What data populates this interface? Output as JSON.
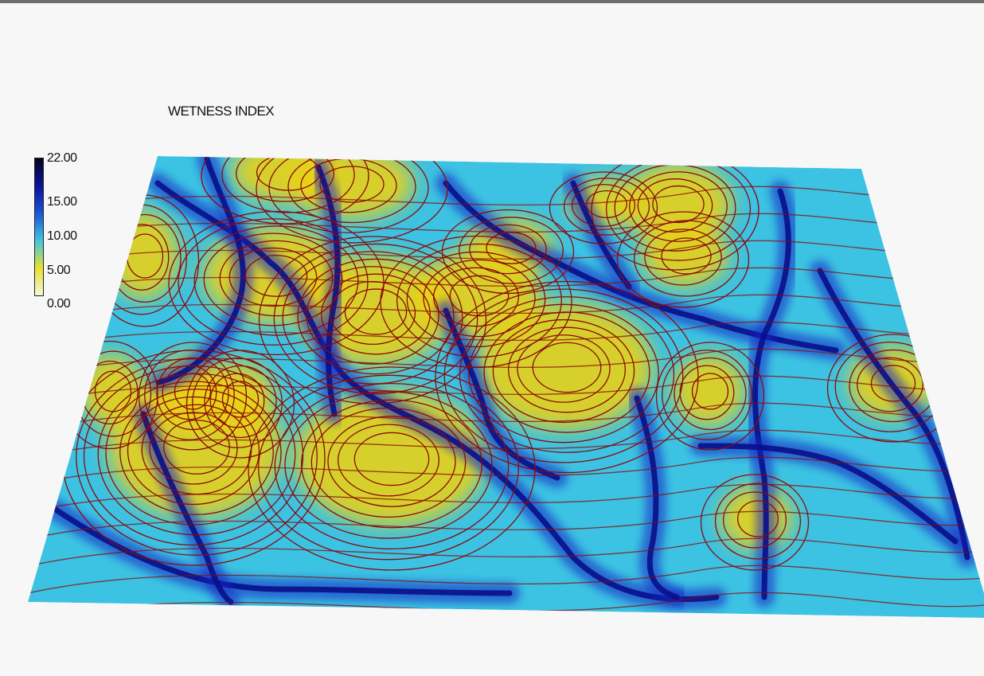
{
  "map": {
    "title": "WETNESS INDEX",
    "colors": {
      "background": "#f7f7f7",
      "contour": "#8b0a0a",
      "ridge": "#e8d21a",
      "slope": "#3cc2e3",
      "channel": "#1723c2",
      "deep_channel": "#0a0f8a"
    }
  },
  "legend": {
    "ticks": [
      {
        "label": "22.00",
        "value": 22
      },
      {
        "label": "15.00",
        "value": 15
      },
      {
        "label": "10.00",
        "value": 10
      },
      {
        "label": "5.00",
        "value": 5
      },
      {
        "label": "0.00",
        "value": 0
      }
    ],
    "min": 0,
    "max": 22,
    "gradient": [
      "#f4f7d8",
      "#e8e030",
      "#3fc6df",
      "#1a55d8",
      "#0b129a",
      "#040420"
    ]
  }
}
